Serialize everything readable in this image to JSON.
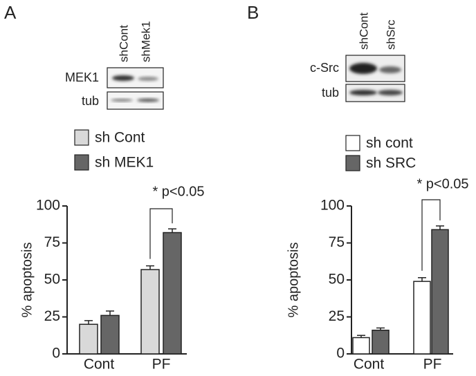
{
  "chart_data": [
    {
      "type": "bar",
      "panel_label": "A",
      "blot": {
        "lanes": [
          "shCont",
          "shMek1"
        ],
        "rows": [
          "MEK1",
          "tub"
        ]
      },
      "categories": [
        "Cont",
        "PF"
      ],
      "series": [
        {
          "name": "sh Cont",
          "color": "#d9d9d9",
          "values": [
            20,
            57
          ],
          "errors": [
            2.5,
            2.5
          ]
        },
        {
          "name": "sh MEK1",
          "color": "#666666",
          "values": [
            26,
            82
          ],
          "errors": [
            3,
            2.5
          ]
        }
      ],
      "ylabel": "% apoptosis",
      "ylim": [
        0,
        100
      ],
      "yticks": [
        0,
        25,
        50,
        75,
        100
      ],
      "annotation": "* p<0.05"
    },
    {
      "type": "bar",
      "panel_label": "B",
      "blot": {
        "lanes": [
          "shCont",
          "shSrc"
        ],
        "rows": [
          "c-Src",
          "tub"
        ]
      },
      "categories": [
        "Cont",
        "PF"
      ],
      "series": [
        {
          "name": "sh cont",
          "color": "#ffffff",
          "values": [
            11,
            49
          ],
          "errors": [
            1.5,
            2.5
          ]
        },
        {
          "name": "sh SRC",
          "color": "#666666",
          "values": [
            16,
            84
          ],
          "errors": [
            1.5,
            2.5
          ]
        }
      ],
      "ylabel": "% apoptosis",
      "ylim": [
        0,
        100
      ],
      "yticks": [
        0,
        25,
        50,
        75,
        100
      ],
      "annotation": "* p<0.05"
    }
  ]
}
